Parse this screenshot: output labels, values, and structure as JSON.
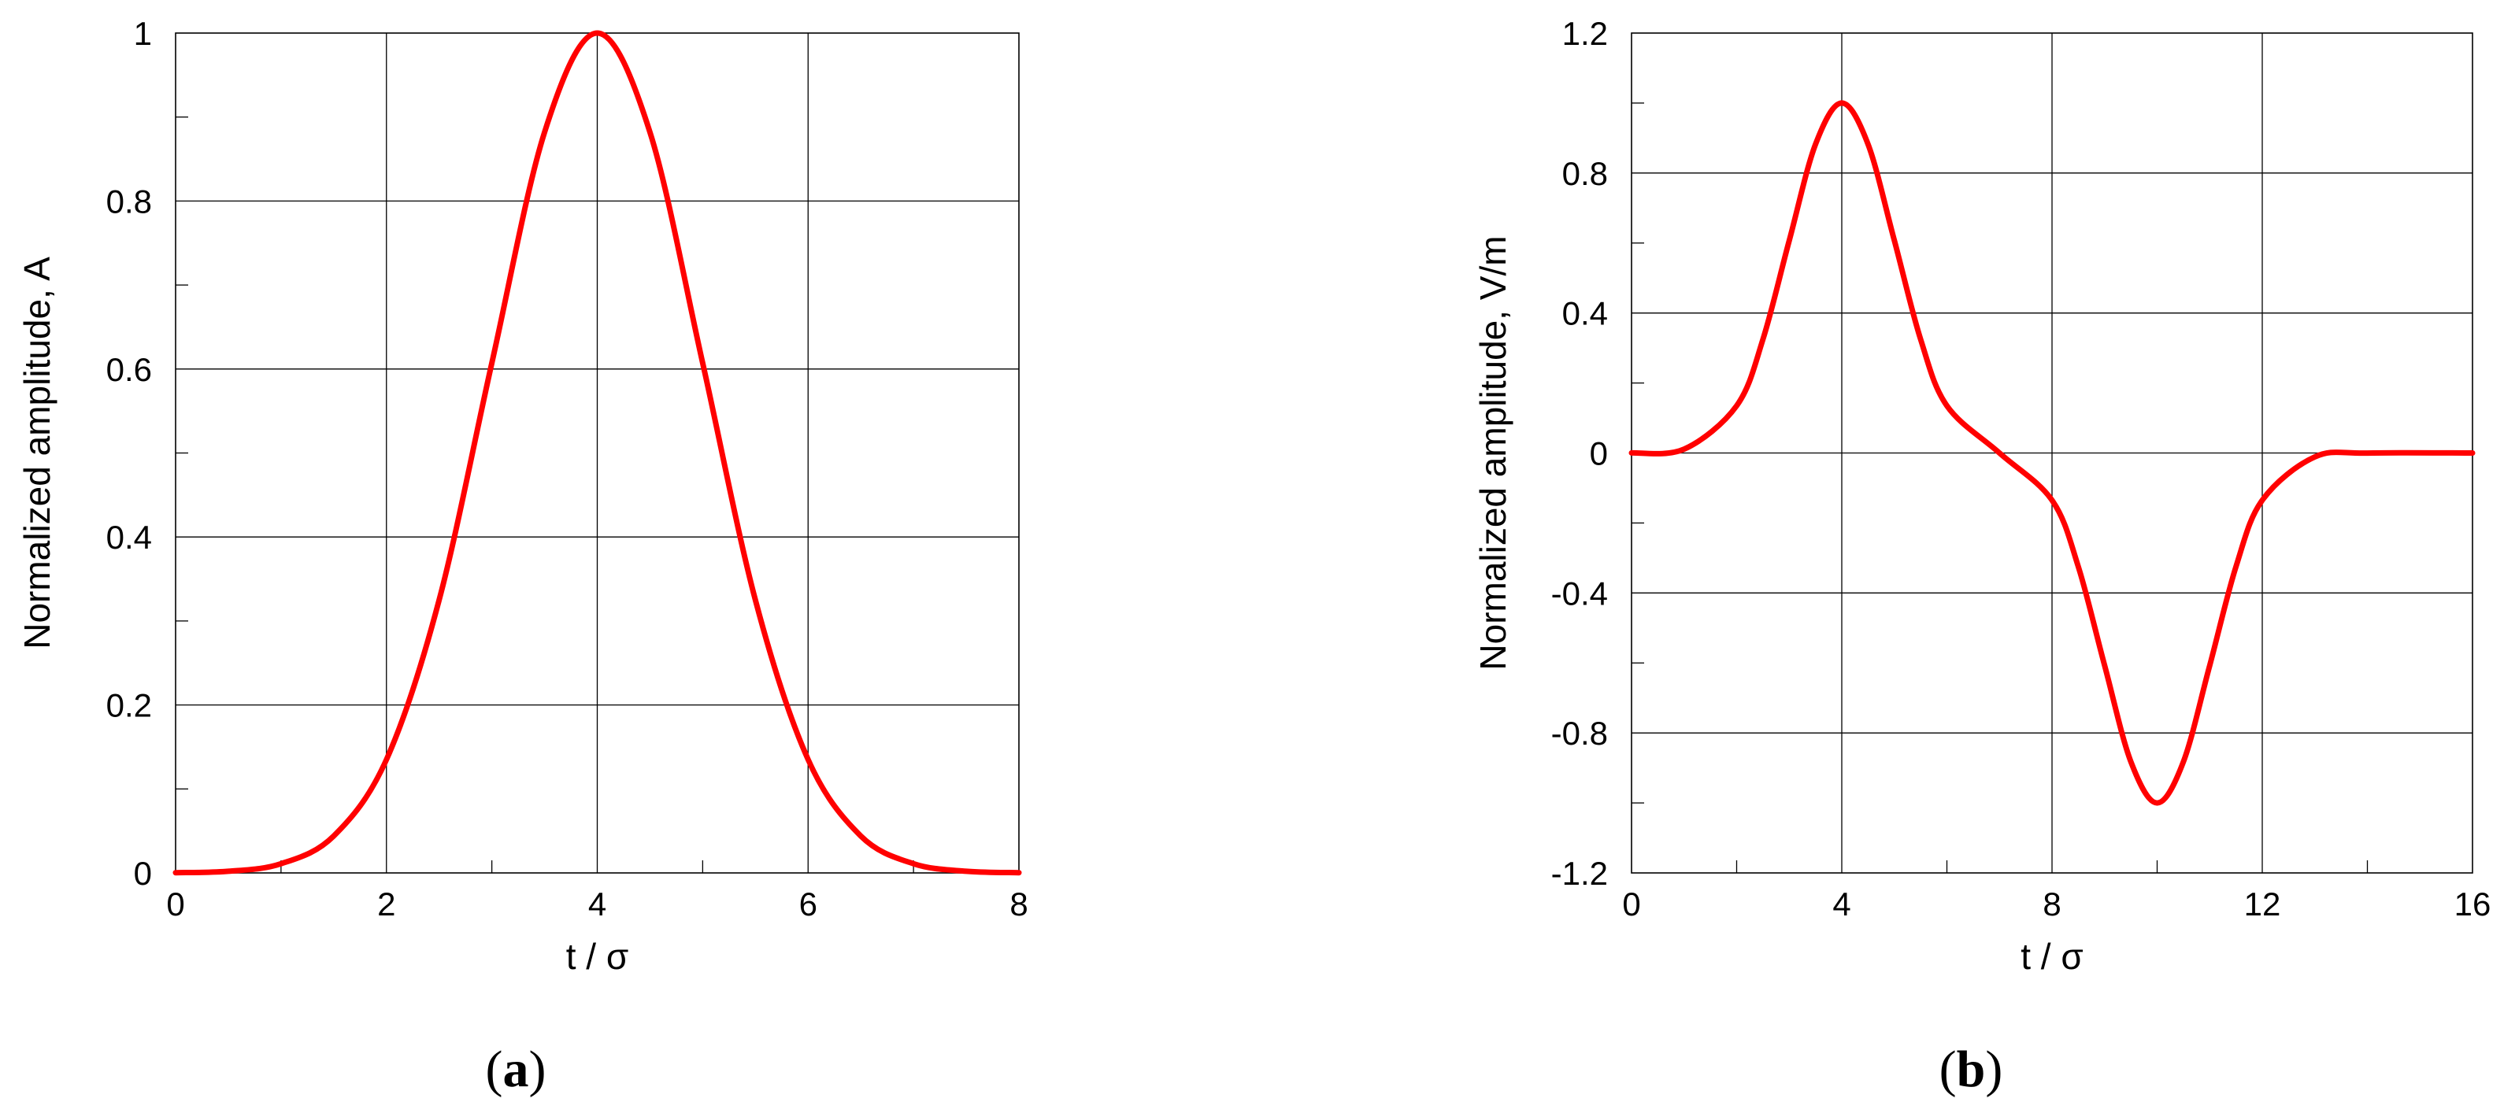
{
  "colors": {
    "series": "#ff0000",
    "axes": "#000000",
    "background": "#ffffff"
  },
  "chart_data": [
    {
      "type": "line",
      "panel_label": "a",
      "xlabel": "t / σ",
      "ylabel": "Normalized amplitude, A",
      "xlim": [
        0,
        8
      ],
      "ylim": [
        0,
        1
      ],
      "x_ticks": [
        0,
        2,
        4,
        6,
        8
      ],
      "x_tick_labels": [
        "0",
        "2",
        "4",
        "6",
        "8"
      ],
      "x_minor_ticks": [
        1,
        3,
        5,
        7
      ],
      "y_ticks": [
        0,
        0.2,
        0.4,
        0.6,
        0.8,
        1
      ],
      "y_tick_labels": [
        "0",
        "0.2",
        "0.4",
        "0.6",
        "0.8",
        "1"
      ],
      "y_minor_ticks": [
        0.1,
        0.3,
        0.5,
        0.7,
        0.9
      ],
      "grid": true,
      "series": [
        {
          "x": [
            0,
            0.5,
            1,
            1.5,
            2,
            2.5,
            3,
            3.5,
            4,
            4.5,
            5,
            5.5,
            6,
            6.5,
            7,
            7.5,
            8
          ],
          "y": [
            0.0003,
            0.002,
            0.011,
            0.044,
            0.135,
            0.325,
            0.607,
            0.882,
            1.0,
            0.882,
            0.607,
            0.325,
            0.135,
            0.044,
            0.011,
            0.002,
            0.0003
          ]
        }
      ]
    },
    {
      "type": "line",
      "panel_label": "b",
      "xlabel": "t / σ",
      "ylabel": "Normalized amplitude, V/m",
      "xlim": [
        0,
        16
      ],
      "ylim": [
        -1.2,
        1.2
      ],
      "x_ticks": [
        0,
        4,
        8,
        12,
        16
      ],
      "x_tick_labels": [
        "0",
        "4",
        "8",
        "12",
        "16"
      ],
      "x_minor_ticks": [
        2,
        6,
        10,
        14
      ],
      "y_ticks": [
        -1.2,
        -0.8,
        -0.4,
        0,
        0.4,
        0.8,
        1.2
      ],
      "y_tick_labels": [
        "-1.2",
        "-0.8",
        "-0.4",
        "0",
        "0.4",
        "0.8",
        "1.2"
      ],
      "y_minor_ticks": [
        -1.0,
        -0.6,
        -0.2,
        0.2,
        0.6,
        1.0
      ],
      "grid": true,
      "series": [
        {
          "x": [
            0,
            1,
            2,
            2.5,
            3,
            3.5,
            4,
            4.5,
            5,
            5.5,
            6,
            7,
            8,
            8.5,
            9,
            9.5,
            10,
            10.5,
            11,
            11.5,
            12,
            13,
            14,
            16
          ],
          "y": [
            0.0003,
            0.011,
            0.135,
            0.325,
            0.607,
            0.882,
            1.0,
            0.882,
            0.607,
            0.325,
            0.135,
            0.0,
            -0.135,
            -0.325,
            -0.607,
            -0.882,
            -1.0,
            -0.882,
            -0.607,
            -0.325,
            -0.135,
            -0.011,
            -0.0003,
            0.0
          ]
        }
      ]
    }
  ]
}
